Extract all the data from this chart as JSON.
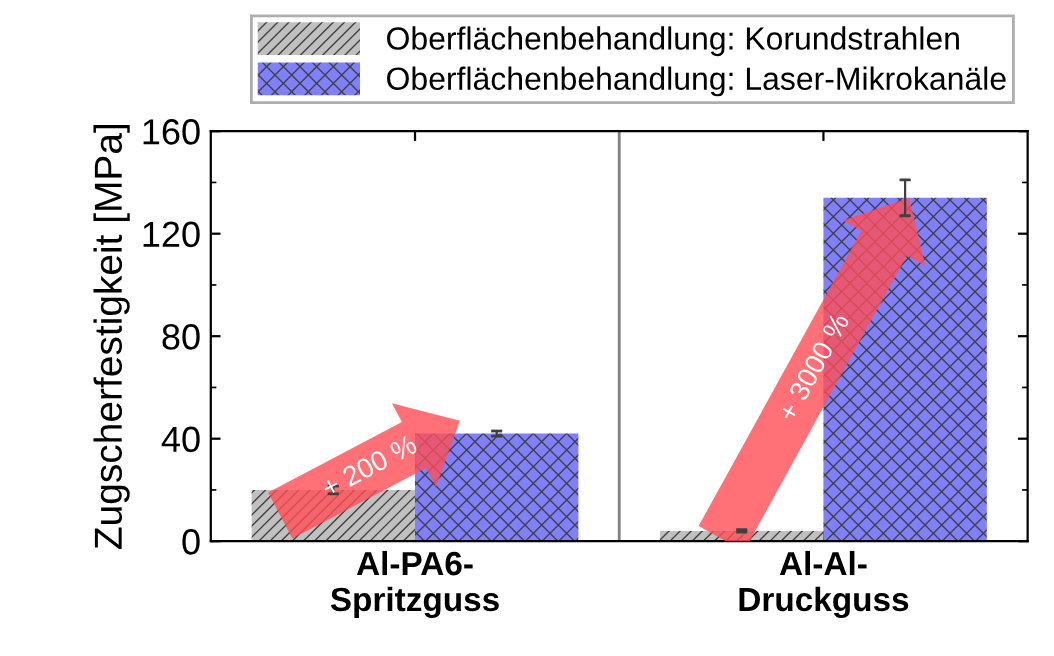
{
  "chart_data": {
    "type": "bar",
    "ylabel": "Zugscherfestigkeit [MPa]",
    "categories": [
      "Al-PA6-\nSpritzguss",
      "Al-Al-\nDruckguss"
    ],
    "series": [
      {
        "name": "Oberflächenbehandlung: Korundstrahlen",
        "color": "#c0c0c0",
        "values": [
          20,
          4
        ],
        "errors": [
          1.5,
          0.5
        ]
      },
      {
        "name": "Oberflächenbehandlung: Laser-Mikrokanäle",
        "color": "#8080ff",
        "values": [
          42,
          134
        ],
        "errors": [
          1,
          7
        ]
      }
    ],
    "ylim": [
      0,
      160
    ],
    "yticks": [
      0,
      40,
      80,
      120,
      160
    ],
    "grid": false,
    "legend": "top",
    "annotations": [
      "+ 200 %",
      "+ 3000 %"
    ]
  }
}
